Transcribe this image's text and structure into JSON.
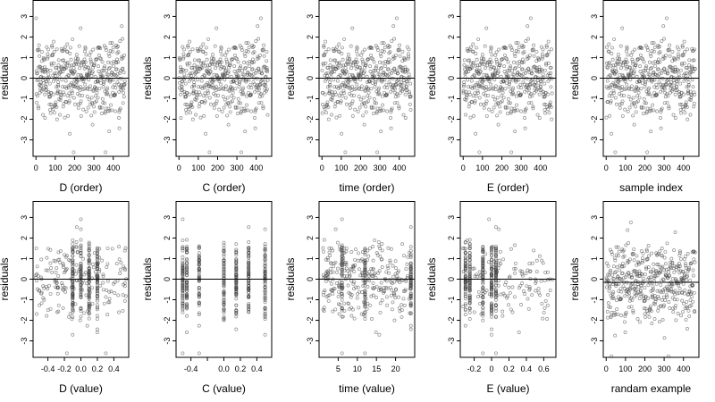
{
  "chart_data": [
    {
      "type": "scatter",
      "id": "D-order",
      "xlabel": "D (order)",
      "ylabel": "residuals",
      "xlim": [
        -15,
        480
      ],
      "ylim": [
        -3.8,
        3.8
      ],
      "xticks": [
        0,
        100,
        200,
        300,
        400
      ],
      "yticks": [
        -3,
        -2,
        -1,
        0,
        1,
        2,
        3
      ],
      "ref_line": 0,
      "dist": {
        "kind": "index",
        "n": 460
      }
    },
    {
      "type": "scatter",
      "id": "C-order",
      "xlabel": "C (order)",
      "ylabel": "residuals",
      "xlim": [
        -15,
        480
      ],
      "ylim": [
        -3.8,
        3.8
      ],
      "xticks": [
        0,
        100,
        200,
        300,
        400
      ],
      "yticks": [
        -3,
        -2,
        -1,
        0,
        1,
        2,
        3
      ],
      "ref_line": 0,
      "dist": {
        "kind": "index",
        "n": 460
      }
    },
    {
      "type": "scatter",
      "id": "time-order",
      "xlabel": "time (order)",
      "ylabel": "residuals",
      "xlim": [
        -15,
        480
      ],
      "ylim": [
        -3.8,
        3.8
      ],
      "xticks": [
        0,
        100,
        200,
        300,
        400
      ],
      "yticks": [
        -3,
        -2,
        -1,
        0,
        1,
        2,
        3
      ],
      "ref_line": 0,
      "dist": {
        "kind": "index",
        "n": 460
      }
    },
    {
      "type": "scatter",
      "id": "E-order",
      "xlabel": "E (order)",
      "ylabel": "residuals",
      "xlim": [
        -15,
        480
      ],
      "ylim": [
        -3.8,
        3.8
      ],
      "xticks": [
        0,
        100,
        200,
        300,
        400
      ],
      "yticks": [
        -3,
        -2,
        -1,
        0,
        1,
        2,
        3
      ],
      "ref_line": 0,
      "dist": {
        "kind": "index",
        "n": 460
      }
    },
    {
      "type": "scatter",
      "id": "sample-index",
      "xlabel": "sample index",
      "ylabel": "residuals",
      "xlim": [
        -15,
        480
      ],
      "ylim": [
        -3.8,
        3.8
      ],
      "xticks": [
        0,
        100,
        200,
        300,
        400
      ],
      "yticks": [
        -3,
        -2,
        -1,
        0,
        1,
        2,
        3
      ],
      "ref_line": 0,
      "dist": {
        "kind": "index",
        "n": 460
      }
    },
    {
      "type": "scatter",
      "id": "D-value",
      "xlabel": "D (value)",
      "ylabel": "residuals",
      "xlim": [
        -0.58,
        0.58
      ],
      "ylim": [
        -3.8,
        3.8
      ],
      "xticks": [
        -0.4,
        -0.2,
        0.0,
        0.2,
        0.4
      ],
      "xtick_labels": [
        "-0.4",
        "-0.2",
        "0.0",
        "0.2",
        "0.4"
      ],
      "yticks": [
        -3,
        -2,
        -1,
        0,
        1,
        2,
        3
      ],
      "ref_line": 0,
      "dist": {
        "kind": "mixed",
        "n": 460,
        "values": [
          -0.1,
          0.0,
          0.1,
          0.2
        ],
        "share": 0.55,
        "range": [
          -0.55,
          0.55
        ]
      }
    },
    {
      "type": "scatter",
      "id": "C-value",
      "xlabel": "C (value)",
      "ylabel": "residuals",
      "xlim": [
        -0.58,
        0.58
      ],
      "ylim": [
        -3.8,
        3.8
      ],
      "xticks": [
        -0.4,
        -0.2,
        0.0,
        0.2,
        0.4
      ],
      "xtick_labels": [
        "-0.4",
        "",
        "0.0",
        "0.2",
        "0.4"
      ],
      "yticks": [
        -3,
        -2,
        -1,
        0,
        1,
        2,
        3
      ],
      "ref_line": 0,
      "dist": {
        "kind": "discrete",
        "n": 460,
        "values": [
          -0.5,
          -0.45,
          -0.3,
          0.0,
          0.15,
          0.3,
          0.5
        ]
      }
    },
    {
      "type": "scatter",
      "id": "time-value",
      "xlabel": "time (value)",
      "ylabel": "residuals",
      "xlim": [
        0,
        25
      ],
      "ylim": [
        -3.8,
        3.8
      ],
      "xticks": [
        5,
        10,
        15,
        20
      ],
      "yticks": [
        -3,
        -2,
        -1,
        0,
        1,
        2,
        3
      ],
      "ref_line": 0,
      "dist": {
        "kind": "mixed",
        "n": 460,
        "values": [
          6,
          12,
          24
        ],
        "share": 0.35,
        "range": [
          1,
          24
        ]
      }
    },
    {
      "type": "scatter",
      "id": "E-value",
      "xlabel": "E (value)",
      "ylabel": "residuals",
      "xlim": [
        -0.36,
        0.74
      ],
      "ylim": [
        -3.8,
        3.8
      ],
      "xticks": [
        -0.2,
        0.0,
        0.2,
        0.4,
        0.6
      ],
      "yticks": [
        -3,
        -2,
        -1,
        0,
        1,
        2,
        3
      ],
      "ref_line": 0,
      "dist": {
        "kind": "mixed",
        "n": 460,
        "values": [
          -0.3,
          -0.25,
          -0.1,
          0.0,
          0.05
        ],
        "share": 0.7,
        "range": [
          -0.33,
          0.7
        ]
      }
    },
    {
      "type": "scatter",
      "id": "random-example",
      "xlabel": "randam example",
      "ylabel": "residuals",
      "xlim": [
        -15,
        480
      ],
      "ylim": [
        -3.8,
        3.8
      ],
      "xticks": [
        0,
        100,
        200,
        300,
        400
      ],
      "yticks": [
        -3,
        -2,
        -1,
        0,
        1,
        2,
        3
      ],
      "ref_line": -0.15,
      "dist": {
        "kind": "index",
        "n": 460
      }
    }
  ]
}
